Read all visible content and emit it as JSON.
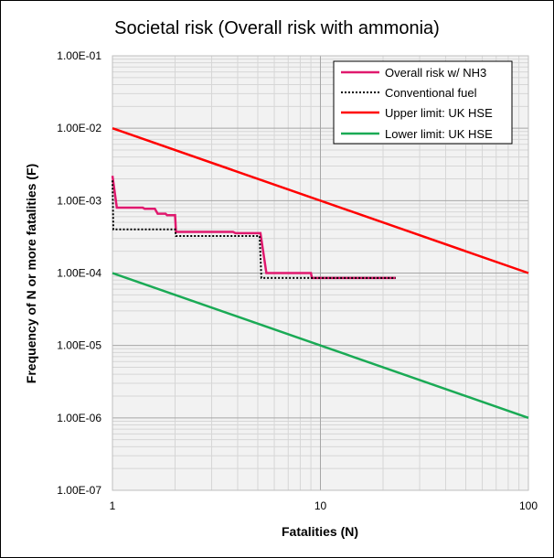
{
  "chart_data": {
    "type": "line",
    "title": "Societal risk (Overall risk with ammonia)",
    "xlabel": "Fatalities (N)",
    "ylabel": "Frequency of N or more fatalities (F)",
    "x_scale": "log",
    "y_scale": "log",
    "xlim": [
      1,
      100
    ],
    "ylim": [
      1e-07,
      0.1
    ],
    "x_tick_labels": [
      "1",
      "10",
      "100"
    ],
    "x_tick_values": [
      1,
      10,
      100
    ],
    "y_tick_labels": [
      "1.00E-07",
      "1.00E-06",
      "1.00E-05",
      "1.00E-04",
      "1.00E-03",
      "1.00E-02",
      "1.00E-01"
    ],
    "y_tick_values": [
      1e-07,
      1e-06,
      1e-05,
      0.0001,
      0.001,
      0.01,
      0.1
    ],
    "grid": true,
    "legend_position": "top-right",
    "series": [
      {
        "name": "Overall risk w/ NH3",
        "color": "#e0196e",
        "style": "solid",
        "points": [
          [
            1,
            0.0022
          ],
          [
            1.05,
            0.0008
          ],
          [
            1.4,
            0.0008
          ],
          [
            1.43,
            0.00077
          ],
          [
            1.6,
            0.00077
          ],
          [
            1.65,
            0.00066
          ],
          [
            1.8,
            0.00066
          ],
          [
            1.83,
            0.00063
          ],
          [
            2.0,
            0.00063
          ],
          [
            2.02,
            0.00037
          ],
          [
            3.8,
            0.00037
          ],
          [
            3.9,
            0.000355
          ],
          [
            5.15,
            0.000355
          ],
          [
            5.5,
            0.0001
          ],
          [
            9,
            0.0001
          ],
          [
            9.1,
            8.55e-05
          ],
          [
            23,
            8.55e-05
          ]
        ]
      },
      {
        "name": "Conventional fuel",
        "color": "#000000",
        "style": "dotted",
        "points": [
          [
            1,
            0.0019
          ],
          [
            1.01,
            0.0004
          ],
          [
            2.0,
            0.0004
          ],
          [
            2.02,
            0.000325
          ],
          [
            5.1,
            0.000325
          ],
          [
            5.2,
            8.55e-05
          ],
          [
            23,
            8.55e-05
          ]
        ]
      },
      {
        "name": "Upper limit: UK HSE",
        "color": "#ff0000",
        "style": "solid",
        "points": [
          [
            1,
            0.01
          ],
          [
            100,
            0.0001
          ]
        ]
      },
      {
        "name": "Lower limit: UK HSE",
        "color": "#1aaa55",
        "style": "solid",
        "points": [
          [
            1,
            0.0001
          ],
          [
            100,
            1e-06
          ]
        ]
      }
    ]
  }
}
